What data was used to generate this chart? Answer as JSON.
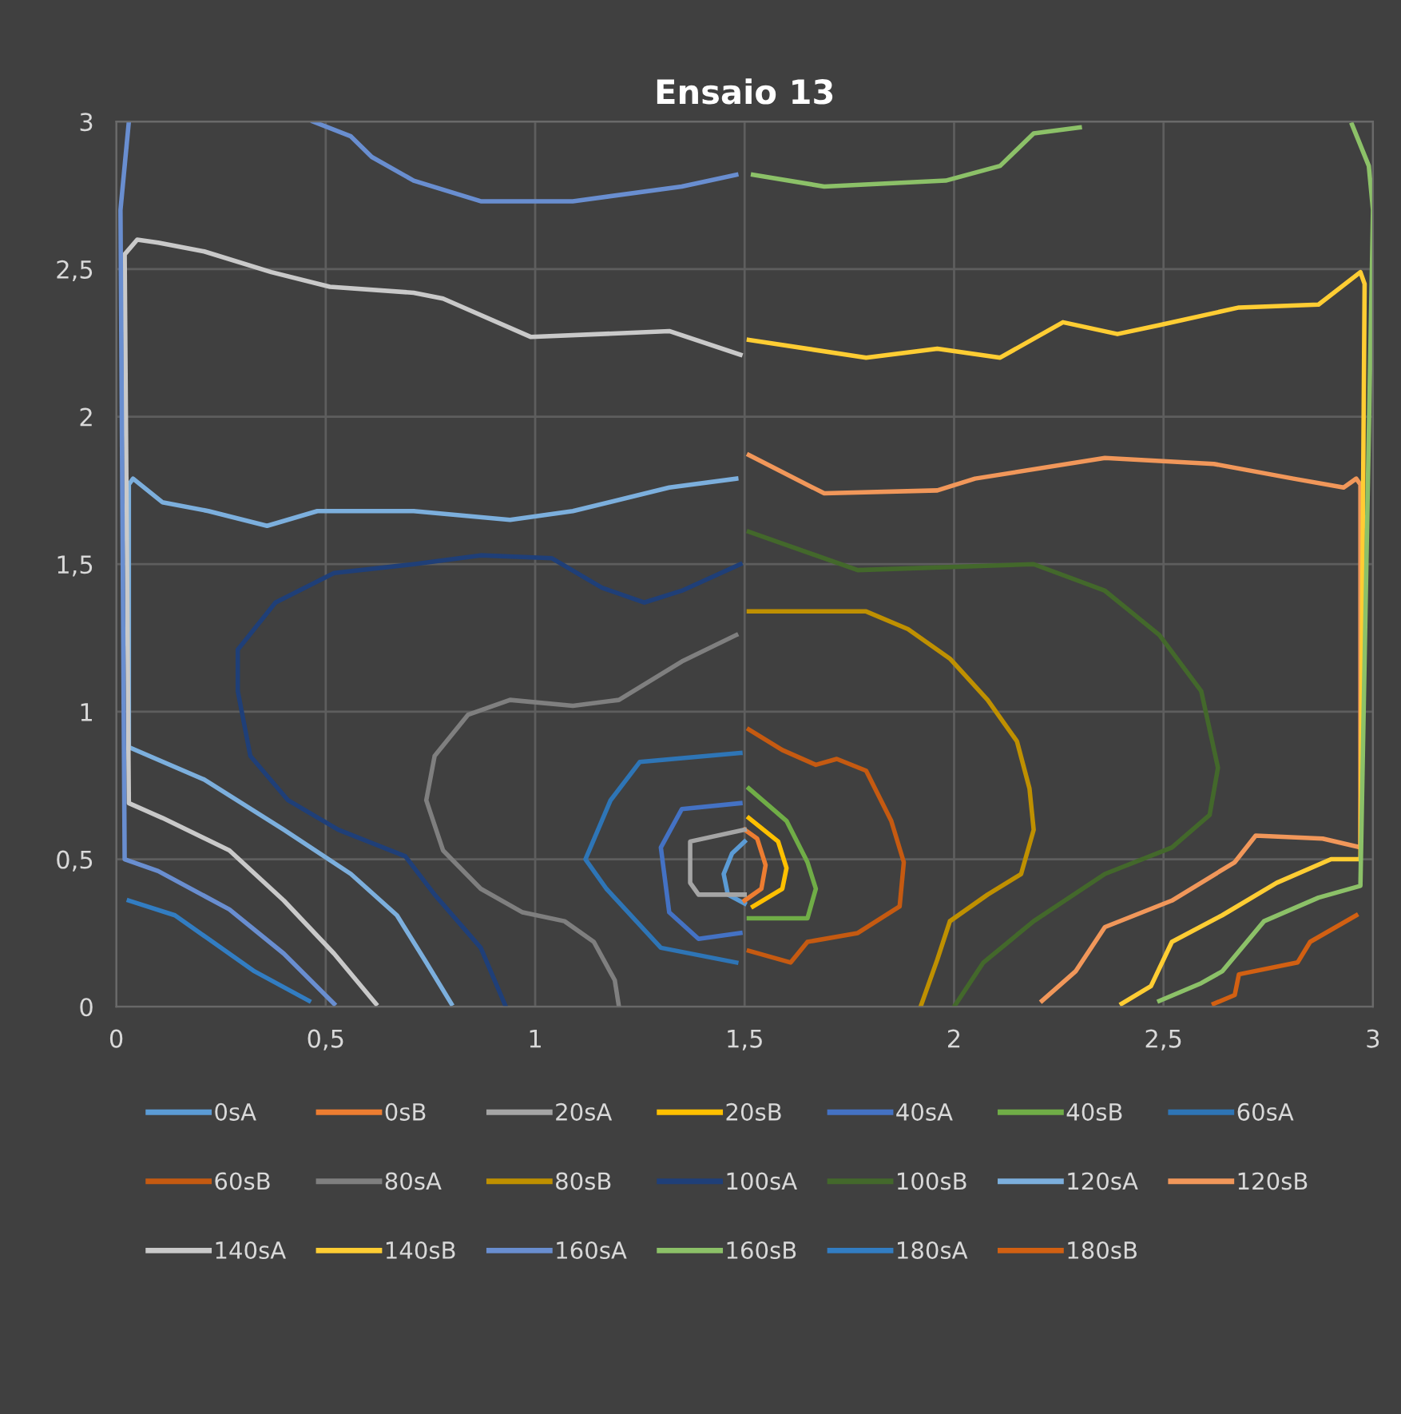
{
  "chart_data": {
    "type": "line",
    "title": "Ensaio 13",
    "xlim": [
      0,
      3
    ],
    "ylim": [
      0,
      3
    ],
    "xticks": [
      0,
      {
        "value": 0.5,
        "label": "0,5"
      },
      1,
      {
        "value": 1.5,
        "label": "1,5"
      },
      2,
      {
        "value": 2.5,
        "label": "2,5"
      },
      3
    ],
    "yticks": [
      0,
      {
        "value": 0.5,
        "label": "0,5"
      },
      1,
      {
        "value": 1.5,
        "label": "1,5"
      },
      2,
      {
        "value": 2.5,
        "label": "2,5"
      },
      3
    ],
    "grid": true,
    "legend": "bottom",
    "marker": "none",
    "line_style": "solid",
    "series": [
      {
        "name": "0sA",
        "color": "#5b9bd5",
        "x": [
          1.5,
          1.47,
          1.45,
          1.46,
          1.5
        ],
        "values": [
          0.56,
          0.52,
          0.45,
          0.38,
          0.35
        ]
      },
      {
        "name": "0sB",
        "color": "#ed7d31",
        "x": [
          1.5,
          1.53,
          1.55,
          1.54,
          1.5
        ],
        "values": [
          0.6,
          0.57,
          0.48,
          0.4,
          0.36
        ]
      },
      {
        "name": "20sA",
        "color": "#a5a5a5",
        "x": [
          1.5,
          1.37,
          1.37,
          1.39,
          1.5
        ],
        "values": [
          0.6,
          0.56,
          0.42,
          0.38,
          0.38
        ]
      },
      {
        "name": "20sB",
        "color": "#ffc000",
        "x": [
          1.51,
          1.58,
          1.6,
          1.59,
          1.52
        ],
        "values": [
          0.64,
          0.56,
          0.47,
          0.4,
          0.34
        ]
      },
      {
        "name": "40sA",
        "color": "#4472c4",
        "x": [
          1.49,
          1.35,
          1.3,
          1.32,
          1.39,
          1.49
        ],
        "values": [
          0.69,
          0.67,
          0.54,
          0.32,
          0.23,
          0.25
        ]
      },
      {
        "name": "40sB",
        "color": "#70ad47",
        "x": [
          1.51,
          1.6,
          1.65,
          1.67,
          1.65,
          1.51
        ],
        "values": [
          0.74,
          0.63,
          0.49,
          0.4,
          0.3,
          0.3
        ]
      },
      {
        "name": "60sA",
        "color": "#2e75b6",
        "x": [
          1.49,
          1.25,
          1.18,
          1.12,
          1.17,
          1.3,
          1.48
        ],
        "values": [
          0.86,
          0.83,
          0.7,
          0.5,
          0.4,
          0.2,
          0.15
        ]
      },
      {
        "name": "60sB",
        "color": "#c55a11",
        "x": [
          1.51,
          1.59,
          1.67,
          1.72,
          1.79,
          1.85,
          1.88,
          1.87,
          1.77,
          1.65,
          1.61,
          1.51
        ],
        "values": [
          0.94,
          0.87,
          0.82,
          0.84,
          0.8,
          0.63,
          0.49,
          0.34,
          0.25,
          0.22,
          0.15,
          0.19
        ]
      },
      {
        "name": "80sA",
        "color": "#7f7f7f",
        "x": [
          1.48,
          1.35,
          1.2,
          1.09,
          0.94,
          0.84,
          0.76,
          0.74,
          0.78,
          0.87,
          0.97,
          1.07,
          1.14,
          1.19,
          1.2
        ],
        "values": [
          1.26,
          1.17,
          1.04,
          1.02,
          1.04,
          0.99,
          0.85,
          0.7,
          0.53,
          0.4,
          0.32,
          0.29,
          0.22,
          0.09,
          0
        ]
      },
      {
        "name": "80sB",
        "color": "#bf9000",
        "x": [
          1.51,
          1.79,
          1.89,
          1.99,
          2.08,
          2.15,
          2.18,
          2.19,
          2.16,
          2.08,
          1.99,
          1.96,
          1.92
        ],
        "values": [
          1.34,
          1.34,
          1.28,
          1.18,
          1.04,
          0.9,
          0.74,
          0.6,
          0.45,
          0.38,
          0.29,
          0.16,
          0
        ]
      },
      {
        "name": "100sA",
        "color": "#1f3f78",
        "x": [
          1.49,
          1.35,
          1.26,
          1.16,
          1.04,
          0.87,
          0.71,
          0.52,
          0.38,
          0.29,
          0.29,
          0.32,
          0.41,
          0.53,
          0.69,
          0.76,
          0.87,
          0.93
        ],
        "values": [
          1.5,
          1.41,
          1.37,
          1.42,
          1.52,
          1.53,
          1.5,
          1.47,
          1.37,
          1.21,
          1.07,
          0.85,
          0.7,
          0.6,
          0.51,
          0.38,
          0.2,
          0
        ]
      },
      {
        "name": "100sB",
        "color": "#43682b",
        "x": [
          1.51,
          1.77,
          2.19,
          2.36,
          2.49,
          2.59,
          2.63,
          2.61,
          2.52,
          2.36,
          2.19,
          2.07,
          2.0
        ],
        "values": [
          1.61,
          1.48,
          1.5,
          1.41,
          1.26,
          1.07,
          0.81,
          0.65,
          0.54,
          0.45,
          0.29,
          0.15,
          0
        ]
      },
      {
        "name": "120sA",
        "color": "#7cafdd",
        "x": [
          1.48,
          1.32,
          1.09,
          0.94,
          0.71,
          0.48,
          0.36,
          0.22,
          0.11,
          0.04,
          0.03,
          0.03,
          0.21,
          0.4,
          0.56,
          0.67,
          0.74,
          0.8
        ],
        "values": [
          1.79,
          1.76,
          1.68,
          1.65,
          1.68,
          1.68,
          1.63,
          1.68,
          1.71,
          1.79,
          1.77,
          0.88,
          0.77,
          0.6,
          0.45,
          0.31,
          0.15,
          0.01
        ]
      },
      {
        "name": "120sB",
        "color": "#f1975a",
        "x": [
          1.51,
          1.69,
          1.96,
          2.05,
          2.36,
          2.62,
          2.81,
          2.93,
          2.96,
          2.97,
          2.97,
          2.88,
          2.72,
          2.67,
          2.52,
          2.36,
          2.29,
          2.21
        ],
        "values": [
          1.87,
          1.74,
          1.75,
          1.79,
          1.86,
          1.84,
          1.79,
          1.76,
          1.79,
          1.77,
          0.54,
          0.57,
          0.58,
          0.49,
          0.36,
          0.27,
          0.12,
          0.02
        ]
      },
      {
        "name": "140sA",
        "color": "#c9c9c9",
        "x": [
          1.49,
          1.32,
          0.99,
          0.78,
          0.71,
          0.51,
          0.37,
          0.21,
          0.1,
          0.05,
          0.02,
          0.03,
          0.11,
          0.27,
          0.4,
          0.52,
          0.62
        ],
        "values": [
          2.21,
          2.29,
          2.27,
          2.4,
          2.42,
          2.44,
          2.49,
          2.56,
          2.59,
          2.6,
          2.55,
          0.69,
          0.64,
          0.53,
          0.36,
          0.18,
          0.01
        ]
      },
      {
        "name": "140sB",
        "color": "#ffcd33",
        "x": [
          1.51,
          1.79,
          1.96,
          2.11,
          2.26,
          2.39,
          2.49,
          2.68,
          2.87,
          2.97,
          2.98,
          2.97,
          2.9,
          2.77,
          2.64,
          2.52,
          2.47,
          2.4
        ],
        "values": [
          2.26,
          2.2,
          2.23,
          2.2,
          2.32,
          2.28,
          2.31,
          2.37,
          2.38,
          2.49,
          2.45,
          0.5,
          0.5,
          0.42,
          0.31,
          0.22,
          0.07,
          0.01
        ]
      },
      {
        "name": "160sA",
        "color": "#698ed0",
        "x": [
          1.48,
          1.35,
          1.09,
          0.87,
          0.71,
          0.61,
          0.56,
          0.47,
          0.3,
          0.03,
          0.02,
          0.01,
          0.02,
          0.1,
          0.27,
          0.4,
          0.52
        ],
        "values": [
          2.82,
          2.78,
          2.73,
          2.73,
          2.8,
          2.88,
          2.95,
          3.0,
          null,
          3.0,
          2.85,
          2.7,
          0.5,
          0.46,
          0.33,
          0.18,
          0.01
        ]
      },
      {
        "name": "160sB",
        "color": "#8cc168",
        "x": [
          1.52,
          1.69,
          1.98,
          2.11,
          2.19,
          2.3,
          2.6,
          2.95,
          2.99,
          3.0,
          2.97,
          2.87,
          2.74,
          2.64,
          2.59,
          2.49
        ],
        "values": [
          2.82,
          2.78,
          2.8,
          2.85,
          2.96,
          2.98,
          null,
          2.99,
          2.85,
          2.7,
          0.41,
          0.37,
          0.29,
          0.12,
          0.08,
          0.02
        ]
      },
      {
        "name": "180sA",
        "color": "#327dc2",
        "x": [
          0.03,
          0.14,
          0.22,
          0.33,
          0.46
        ],
        "values": [
          0.36,
          0.31,
          0.23,
          0.12,
          0.02
        ]
      },
      {
        "name": "180sB",
        "color": "#d26012",
        "x": [
          2.96,
          2.85,
          2.82,
          2.68,
          2.67,
          2.62
        ],
        "values": [
          0.31,
          0.22,
          0.15,
          0.11,
          0.04,
          0.01
        ]
      }
    ]
  }
}
